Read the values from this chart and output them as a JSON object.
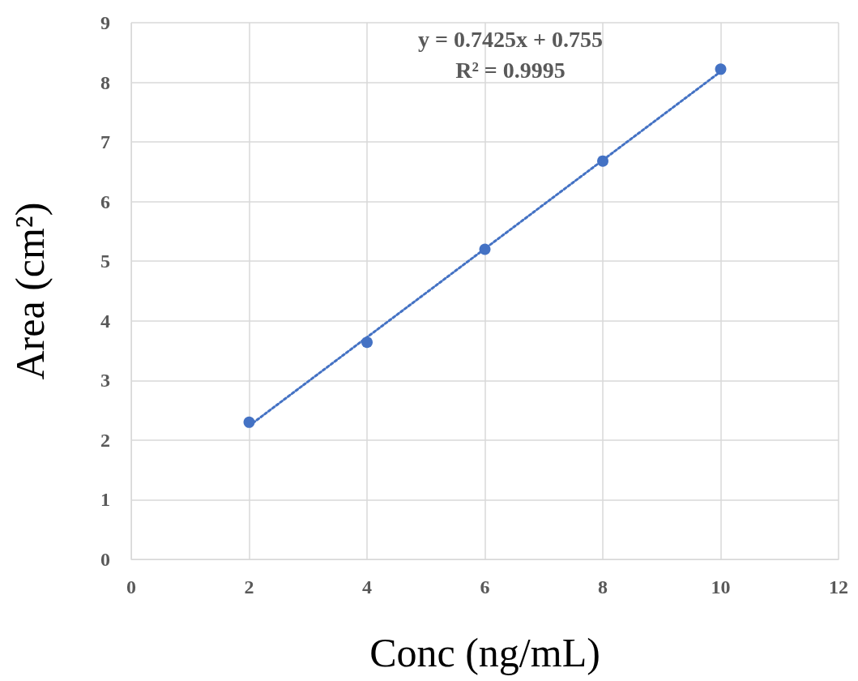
{
  "chart_data": {
    "type": "scatter",
    "xlabel": "Conc (ng/mL)",
    "ylabel": "Area (cm²)",
    "annotations": [
      "y = 0.7425x + 0.755",
      "R² = 0.9995"
    ],
    "x": [
      2,
      4,
      6,
      8,
      10
    ],
    "series": [
      {
        "color": "#4472c4",
        "marker": "circle",
        "values": [
          2.3,
          3.64,
          5.2,
          6.68,
          8.22
        ]
      },
      {
        "type": "line",
        "color": "#4472c4",
        "line_style": "dotted",
        "marker": "none",
        "x": [
          2,
          10
        ],
        "values": [
          2.24,
          8.18
        ]
      }
    ],
    "xlim": [
      0,
      12
    ],
    "xticks": [
      0,
      2,
      4,
      6,
      8,
      10,
      12
    ],
    "ylim": [
      0,
      9
    ],
    "yticks": [
      0,
      1,
      2,
      3,
      4,
      5,
      6,
      7,
      8,
      9
    ],
    "grid": true
  }
}
